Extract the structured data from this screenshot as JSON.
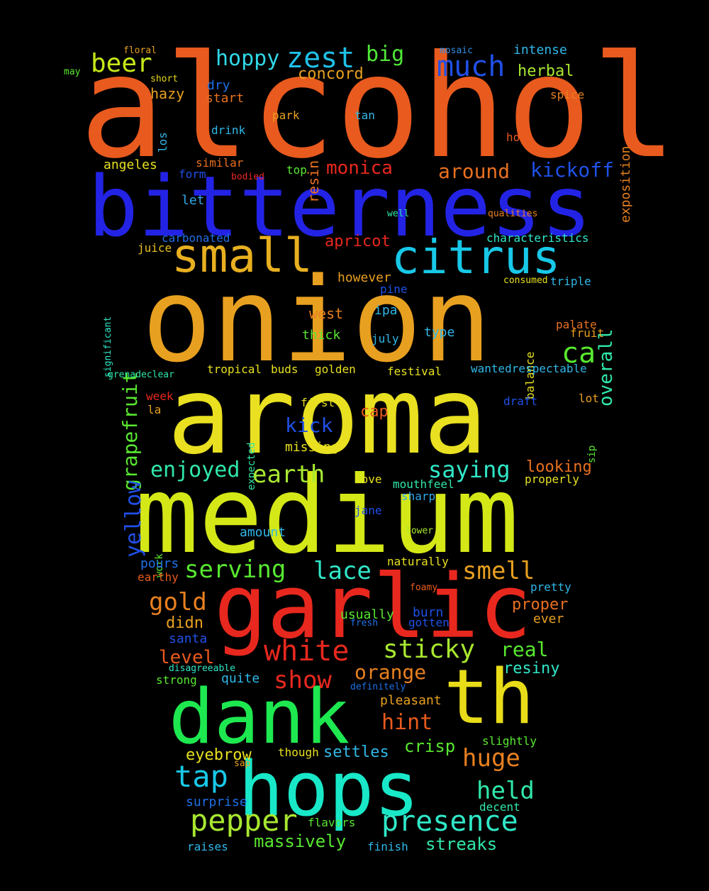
{
  "background": "#000000",
  "words": [
    {
      "text": "alcohol",
      "color": "#e85a1e"
    },
    {
      "text": "bitterness",
      "color": "#2323e6"
    },
    {
      "text": "onion",
      "color": "#e8a020"
    },
    {
      "text": "aroma",
      "color": "#e8e020"
    },
    {
      "text": "medium",
      "color": "#d4e818"
    },
    {
      "text": "garlic",
      "color": "#e8281e"
    },
    {
      "text": "dank",
      "color": "#1ee850"
    },
    {
      "text": "hops",
      "color": "#18e8c8"
    },
    {
      "text": "th",
      "color": "#e8dc18"
    },
    {
      "text": "small",
      "color": "#e8b020"
    },
    {
      "text": "citrus",
      "color": "#18c8e8"
    },
    {
      "text": "zest",
      "color": "#20c0e8"
    },
    {
      "text": "much",
      "color": "#2050e8"
    },
    {
      "text": "beer",
      "color": "#c8e818"
    },
    {
      "text": "hoppy",
      "color": "#30d8e8"
    },
    {
      "text": "big",
      "color": "#50e838"
    },
    {
      "text": "concord",
      "color": "#e8a020"
    },
    {
      "text": "herbal",
      "color": "#a8e830"
    },
    {
      "text": "intense",
      "color": "#30b8e8"
    },
    {
      "text": "mosaic",
      "color": "#3090e8"
    },
    {
      "text": "floral",
      "color": "#e8a020"
    },
    {
      "text": "may",
      "color": "#58e830"
    },
    {
      "text": "short",
      "color": "#e8d820"
    },
    {
      "text": "exposition",
      "color": "#e88020"
    },
    {
      "text": "hazy",
      "color": "#e8a020"
    },
    {
      "text": "dry",
      "color": "#2070e8"
    },
    {
      "text": "start",
      "color": "#e87020"
    },
    {
      "text": "spice",
      "color": "#e88020"
    },
    {
      "text": "resin",
      "color": "#e87020"
    },
    {
      "text": "park",
      "color": "#e8a020"
    },
    {
      "text": "tan",
      "color": "#30b8e8"
    },
    {
      "text": "los",
      "color": "#30b8e8"
    },
    {
      "text": "drink",
      "color": "#30b8e8"
    },
    {
      "text": "hot",
      "color": "#e85a1e"
    },
    {
      "text": "monica",
      "color": "#e8281e"
    },
    {
      "text": "around",
      "color": "#e87020"
    },
    {
      "text": "kickoff",
      "color": "#2050e8"
    },
    {
      "text": "angeles",
      "color": "#e8e020"
    },
    {
      "text": "similar",
      "color": "#e87020"
    },
    {
      "text": "form",
      "color": "#2050e8"
    },
    {
      "text": "bodied",
      "color": "#e8281e"
    },
    {
      "text": "top",
      "color": "#58e830"
    },
    {
      "text": "let",
      "color": "#30a8e8"
    },
    {
      "text": "well",
      "color": "#30e8a8"
    },
    {
      "text": "qualities",
      "color": "#e88020"
    },
    {
      "text": "carbonated",
      "color": "#2070e8"
    },
    {
      "text": "characteristics",
      "color": "#30e8c8"
    },
    {
      "text": "juice",
      "color": "#e8c020"
    },
    {
      "text": "apricot",
      "color": "#e8281e"
    },
    {
      "text": "overall",
      "color": "#30e8a8"
    },
    {
      "text": "grapefruit",
      "color": "#58e830"
    },
    {
      "text": "significant",
      "color": "#30e8c8"
    },
    {
      "text": "however",
      "color": "#e8a020"
    },
    {
      "text": "consumed",
      "color": "#e8e020"
    },
    {
      "text": "triple",
      "color": "#30b8e8"
    },
    {
      "text": "pine",
      "color": "#2050e8"
    },
    {
      "text": "ca",
      "color": "#58e830"
    },
    {
      "text": "west",
      "color": "#e88020"
    },
    {
      "text": "ipa",
      "color": "#30b8e8"
    },
    {
      "text": "balance",
      "color": "#e8e020"
    },
    {
      "text": "palate",
      "color": "#e87020"
    },
    {
      "text": "fruit",
      "color": "#e8a020"
    },
    {
      "text": "thick",
      "color": "#58e830"
    },
    {
      "text": "july",
      "color": "#30b8e8"
    },
    {
      "text": "type",
      "color": "#30b8e8"
    },
    {
      "text": "grenadeclear",
      "color": "#30e8a8"
    },
    {
      "text": "tropical",
      "color": "#e8e020"
    },
    {
      "text": "buds",
      "color": "#e8e020"
    },
    {
      "text": "golden",
      "color": "#e8e020"
    },
    {
      "text": "festival",
      "color": "#e8e020"
    },
    {
      "text": "wantedrespectable",
      "color": "#30b8e8"
    },
    {
      "text": "yellow",
      "color": "#2050e8"
    },
    {
      "text": "week",
      "color": "#e8281e"
    },
    {
      "text": "expected",
      "color": "#30e8a8"
    },
    {
      "text": "first",
      "color": "#e8e020"
    },
    {
      "text": "draft",
      "color": "#2050e8"
    },
    {
      "text": "lot",
      "color": "#e8a020"
    },
    {
      "text": "la",
      "color": "#e8a020"
    },
    {
      "text": "cap",
      "color": "#e85a1e"
    },
    {
      "text": "kick",
      "color": "#2050e8"
    },
    {
      "text": "sip",
      "color": "#58e830"
    },
    {
      "text": "missing",
      "color": "#e8e020"
    },
    {
      "text": "enjoyed",
      "color": "#30e8a8"
    },
    {
      "text": "earth",
      "color": "#a8e830"
    },
    {
      "text": "saying",
      "color": "#30e8c8"
    },
    {
      "text": "looking",
      "color": "#e87020"
    },
    {
      "text": "love",
      "color": "#e8e020"
    },
    {
      "text": "mouthfeel",
      "color": "#30e8a8"
    },
    {
      "text": "properly",
      "color": "#e8e020"
    },
    {
      "text": "jane",
      "color": "#2050e8"
    },
    {
      "text": "sharp",
      "color": "#30a8e8"
    },
    {
      "text": "work",
      "color": "#58e830"
    },
    {
      "text": "amount",
      "color": "#30b8e8"
    },
    {
      "text": "lower",
      "color": "#a8e830"
    },
    {
      "text": "pours",
      "color": "#2070e8"
    },
    {
      "text": "naturally",
      "color": "#e8e020"
    },
    {
      "text": "earthy",
      "color": "#e85a1e"
    },
    {
      "text": "serving",
      "color": "#58e830"
    },
    {
      "text": "lace",
      "color": "#30e8c8"
    },
    {
      "text": "smell",
      "color": "#e8a020"
    },
    {
      "text": "foamy",
      "color": "#e85a1e"
    },
    {
      "text": "pretty",
      "color": "#30b8e8"
    },
    {
      "text": "gold",
      "color": "#e88020"
    },
    {
      "text": "proper",
      "color": "#e87020"
    },
    {
      "text": "didn",
      "color": "#e8a020"
    },
    {
      "text": "usually",
      "color": "#58e830"
    },
    {
      "text": "burn",
      "color": "#2050e8"
    },
    {
      "text": "fresh",
      "color": "#2070e8"
    },
    {
      "text": "gotten",
      "color": "#2050e8"
    },
    {
      "text": "ever",
      "color": "#e8a020"
    },
    {
      "text": "santa",
      "color": "#2050e8"
    },
    {
      "text": "white",
      "color": "#e8281e"
    },
    {
      "text": "sticky",
      "color": "#a8e830"
    },
    {
      "text": "real",
      "color": "#58e830"
    },
    {
      "text": "level",
      "color": "#e85a1e"
    },
    {
      "text": "disagreeable",
      "color": "#30e8c8"
    },
    {
      "text": "show",
      "color": "#e8281e"
    },
    {
      "text": "orange",
      "color": "#e88020"
    },
    {
      "text": "resiny",
      "color": "#30e8c8"
    },
    {
      "text": "strong",
      "color": "#58e830"
    },
    {
      "text": "quite",
      "color": "#30b8e8"
    },
    {
      "text": "definitely",
      "color": "#2070e8"
    },
    {
      "text": "pleasant",
      "color": "#e8a020"
    },
    {
      "text": "hint",
      "color": "#e85a1e"
    },
    {
      "text": "huge",
      "color": "#e88020"
    },
    {
      "text": "crisp",
      "color": "#58e830"
    },
    {
      "text": "slightly",
      "color": "#58e830"
    },
    {
      "text": "eyebrow",
      "color": "#e8e020"
    },
    {
      "text": "though",
      "color": "#e8e020"
    },
    {
      "text": "settles",
      "color": "#30b8e8"
    },
    {
      "text": "sap",
      "color": "#e8a020"
    },
    {
      "text": "tap",
      "color": "#18c8e8"
    },
    {
      "text": "held",
      "color": "#30e8a8"
    },
    {
      "text": "decent",
      "color": "#30e8a8"
    },
    {
      "text": "surprise",
      "color": "#2070e8"
    },
    {
      "text": "pepper",
      "color": "#a8e830"
    },
    {
      "text": "flavors",
      "color": "#58e830"
    },
    {
      "text": "presence",
      "color": "#30e8c8"
    },
    {
      "text": "massively",
      "color": "#58e830"
    },
    {
      "text": "raises",
      "color": "#30b8e8"
    },
    {
      "text": "finish",
      "color": "#30b8e8"
    },
    {
      "text": "streaks",
      "color": "#30e8a8"
    }
  ]
}
